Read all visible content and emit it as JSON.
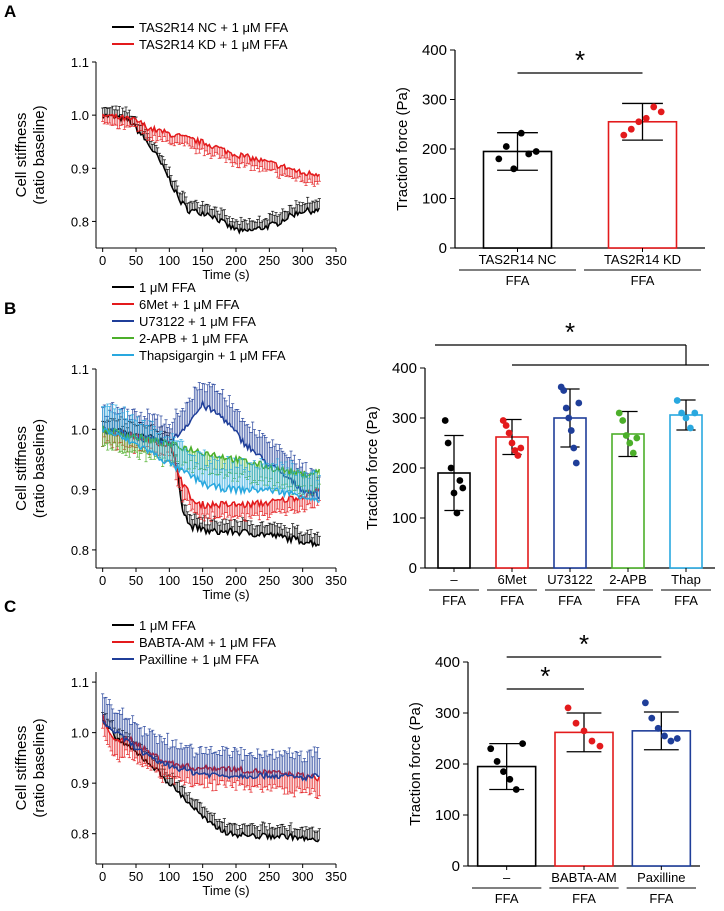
{
  "chart_data": [
    {
      "panel": "A",
      "type": "line",
      "xlabel": "Time (s)",
      "ylabel": [
        "Cell stiffness",
        "(ratio baseline)"
      ],
      "xlim": [
        -10,
        350
      ],
      "ylim": [
        0.75,
        1.1
      ],
      "xticks": [
        "0",
        "50",
        "100",
        "150",
        "200",
        "250",
        "300",
        "350"
      ],
      "yticks": [
        "0.8",
        "0.9",
        "1.0",
        "1.1"
      ],
      "series": [
        {
          "name": "TAS2R14 NC + 1 μM FFA",
          "color": "#000000",
          "err": 0.018,
          "knots": [
            [
              0,
              1.0
            ],
            [
              40,
              0.99
            ],
            [
              60,
              0.96
            ],
            [
              80,
              0.925
            ],
            [
              100,
              0.88
            ],
            [
              115,
              0.84
            ],
            [
              130,
              0.82
            ],
            [
              160,
              0.815
            ],
            [
              190,
              0.79
            ],
            [
              210,
              0.78
            ],
            [
              230,
              0.785
            ],
            [
              260,
              0.795
            ],
            [
              280,
              0.81
            ],
            [
              300,
              0.82
            ],
            [
              325,
              0.82
            ]
          ]
        },
        {
          "name": "TAS2R14 KD + 1 μM FFA",
          "color": "#e31a1c",
          "err": 0.018,
          "knots": [
            [
              0,
              1.0
            ],
            [
              50,
              0.99
            ],
            [
              70,
              0.975
            ],
            [
              100,
              0.965
            ],
            [
              130,
              0.955
            ],
            [
              160,
              0.945
            ],
            [
              190,
              0.93
            ],
            [
              220,
              0.92
            ],
            [
              250,
              0.91
            ],
            [
              280,
              0.9
            ],
            [
              300,
              0.89
            ],
            [
              325,
              0.89
            ]
          ]
        }
      ]
    },
    {
      "panel": "A",
      "type": "bar",
      "ylabel": "Traction force (Pa)",
      "ylim": [
        0,
        400
      ],
      "yticks": [
        "0",
        "100",
        "200",
        "300",
        "400"
      ],
      "groups": [
        {
          "label": "TAS2R14 NC",
          "sub": "FFA",
          "color": "#000000",
          "mean": 195,
          "sd": 38,
          "points": [
            180,
            205,
            160,
            232,
            190,
            195
          ]
        },
        {
          "label": "TAS2R14 KD",
          "sub": "FFA",
          "color": "#e31a1c",
          "mean": 255,
          "sd": 37,
          "points": [
            228,
            240,
            255,
            262,
            285,
            275
          ]
        }
      ],
      "significance": [
        {
          "from": 0,
          "to": 1,
          "label": "*"
        }
      ]
    },
    {
      "panel": "B",
      "type": "line",
      "xlabel": "Time (s)",
      "ylabel": [
        "Cell stiffness",
        "(ratio baseline)"
      ],
      "xlim": [
        -10,
        350
      ],
      "ylim": [
        0.77,
        1.1
      ],
      "xticks": [
        "0",
        "50",
        "100",
        "150",
        "200",
        "250",
        "300",
        "350"
      ],
      "yticks": [
        "0.8",
        "0.9",
        "1.0",
        "1.1"
      ],
      "series": [
        {
          "name": "1 μM FFA",
          "color": "#000000",
          "err": 0.018,
          "knots": [
            [
              0,
              1.0
            ],
            [
              100,
              0.98
            ],
            [
              110,
              0.94
            ],
            [
              120,
              0.87
            ],
            [
              130,
              0.84
            ],
            [
              160,
              0.83
            ],
            [
              200,
              0.83
            ],
            [
              250,
              0.825
            ],
            [
              300,
              0.815
            ],
            [
              325,
              0.81
            ]
          ]
        },
        {
          "name": "6Met + 1 μM FFA",
          "color": "#e31a1c",
          "err": 0.022,
          "knots": [
            [
              0,
              1.0
            ],
            [
              100,
              0.975
            ],
            [
              120,
              0.91
            ],
            [
              140,
              0.875
            ],
            [
              180,
              0.875
            ],
            [
              220,
              0.875
            ],
            [
              260,
              0.88
            ],
            [
              300,
              0.89
            ],
            [
              325,
              0.9
            ]
          ]
        },
        {
          "name": "U73122 + 1 μM FFA",
          "color": "#1f3e99",
          "err": 0.04,
          "knots": [
            [
              0,
              1.0
            ],
            [
              60,
              0.985
            ],
            [
              100,
              0.975
            ],
            [
              120,
              1.0
            ],
            [
              150,
              1.04
            ],
            [
              180,
              1.02
            ],
            [
              210,
              0.98
            ],
            [
              240,
              0.95
            ],
            [
              270,
              0.925
            ],
            [
              300,
              0.9
            ],
            [
              325,
              0.89
            ]
          ]
        },
        {
          "name": "2-APB + 1 μM FFA",
          "color": "#4caf2a",
          "err": 0.03,
          "knots": [
            [
              0,
              1.0
            ],
            [
              100,
              0.975
            ],
            [
              140,
              0.965
            ],
            [
              180,
              0.955
            ],
            [
              220,
              0.945
            ],
            [
              260,
              0.935
            ],
            [
              300,
              0.925
            ],
            [
              325,
              0.93
            ]
          ]
        },
        {
          "name": "Thapsigargin + 1 μM FFA",
          "color": "#29a8df",
          "err": 0.045,
          "knots": [
            [
              0,
              1.0
            ],
            [
              60,
              0.97
            ],
            [
              90,
              0.95
            ],
            [
              120,
              0.93
            ],
            [
              160,
              0.905
            ],
            [
              200,
              0.9
            ],
            [
              250,
              0.9
            ],
            [
              300,
              0.89
            ],
            [
              325,
              0.88
            ]
          ]
        }
      ]
    },
    {
      "panel": "B",
      "type": "bar",
      "ylabel": "Traction force (Pa)",
      "ylim": [
        0,
        400
      ],
      "yticks": [
        "0",
        "100",
        "200",
        "300",
        "400"
      ],
      "groups": [
        {
          "label": "–",
          "sub": "FFA",
          "color": "#000000",
          "mean": 190,
          "sd": 75,
          "points": [
            295,
            250,
            200,
            150,
            110,
            175,
            160
          ]
        },
        {
          "label": "6Met",
          "sub": "FFA",
          "color": "#e31a1c",
          "mean": 262,
          "sd": 35,
          "points": [
            295,
            285,
            270,
            250,
            235,
            225,
            240
          ]
        },
        {
          "label": "U73122",
          "sub": "FFA",
          "color": "#1f3e99",
          "mean": 300,
          "sd": 58,
          "points": [
            362,
            355,
            320,
            300,
            275,
            240,
            210,
            330
          ]
        },
        {
          "label": "2-APB",
          "sub": "FFA",
          "color": "#4caf2a",
          "mean": 268,
          "sd": 45,
          "points": [
            310,
            295,
            265,
            250,
            230,
            260
          ]
        },
        {
          "label": "Thap",
          "sub": "FFA",
          "color": "#29a8df",
          "mean": 306,
          "sd": 30,
          "points": [
            335,
            310,
            300,
            280,
            310
          ]
        }
      ],
      "significance": [
        {
          "from": 0,
          "to": 4,
          "label": "*"
        }
      ]
    },
    {
      "panel": "C",
      "type": "line",
      "xlabel": "Time (s)",
      "ylabel": [
        "Cell stiffness",
        "(ratio baseline)"
      ],
      "xlim": [
        -10,
        350
      ],
      "ylim": [
        0.74,
        1.12
      ],
      "xticks": [
        "0",
        "50",
        "100",
        "150",
        "200",
        "250",
        "300",
        "350"
      ],
      "yticks": [
        "0.8",
        "0.9",
        "1.0",
        "1.1"
      ],
      "series": [
        {
          "name": "1 μM FFA",
          "color": "#000000",
          "err": 0.02,
          "knots": [
            [
              0,
              1.02
            ],
            [
              20,
              0.99
            ],
            [
              40,
              0.97
            ],
            [
              70,
              0.94
            ],
            [
              100,
              0.9
            ],
            [
              130,
              0.86
            ],
            [
              160,
              0.82
            ],
            [
              190,
              0.8
            ],
            [
              230,
              0.795
            ],
            [
              280,
              0.795
            ],
            [
              325,
              0.785
            ]
          ]
        },
        {
          "name": "BABTA-AM + 1 μM FFA",
          "color": "#e31a1c",
          "err": 0.035,
          "knots": [
            [
              0,
              1.03
            ],
            [
              20,
              0.98
            ],
            [
              40,
              0.99
            ],
            [
              70,
              0.96
            ],
            [
              100,
              0.94
            ],
            [
              140,
              0.93
            ],
            [
              180,
              0.93
            ],
            [
              220,
              0.925
            ],
            [
              260,
              0.92
            ],
            [
              300,
              0.915
            ],
            [
              325,
              0.91
            ]
          ]
        },
        {
          "name": "Paxilline + 1 μM FFA",
          "color": "#1f3e99",
          "err": 0.05,
          "knots": [
            [
              0,
              1.02
            ],
            [
              20,
              1.0
            ],
            [
              40,
              0.98
            ],
            [
              70,
              0.95
            ],
            [
              100,
              0.935
            ],
            [
              140,
              0.92
            ],
            [
              180,
              0.915
            ],
            [
              220,
              0.915
            ],
            [
              260,
              0.915
            ],
            [
              300,
              0.91
            ],
            [
              325,
              0.915
            ]
          ]
        }
      ]
    },
    {
      "panel": "C",
      "type": "bar",
      "ylabel": "Traction force (Pa)",
      "ylim": [
        0,
        400
      ],
      "yticks": [
        "0",
        "100",
        "200",
        "300",
        "400"
      ],
      "groups": [
        {
          "label": "–",
          "sub": "FFA",
          "color": "#000000",
          "mean": 195,
          "sd": 45,
          "points": [
            230,
            205,
            185,
            170,
            150,
            240
          ]
        },
        {
          "label": "BABTA-AM",
          "sub": "FFA",
          "color": "#e31a1c",
          "mean": 262,
          "sd": 38,
          "points": [
            310,
            280,
            265,
            245,
            235
          ]
        },
        {
          "label": "Paxilline",
          "sub": "FFA",
          "color": "#1f3e99",
          "mean": 265,
          "sd": 37,
          "points": [
            320,
            290,
            270,
            255,
            245,
            250
          ]
        }
      ],
      "significance": [
        {
          "from": 0,
          "to": 1,
          "label": "*"
        },
        {
          "from": 0,
          "to": 2,
          "label": "*"
        }
      ]
    }
  ],
  "panels": [
    "A",
    "B",
    "C"
  ]
}
